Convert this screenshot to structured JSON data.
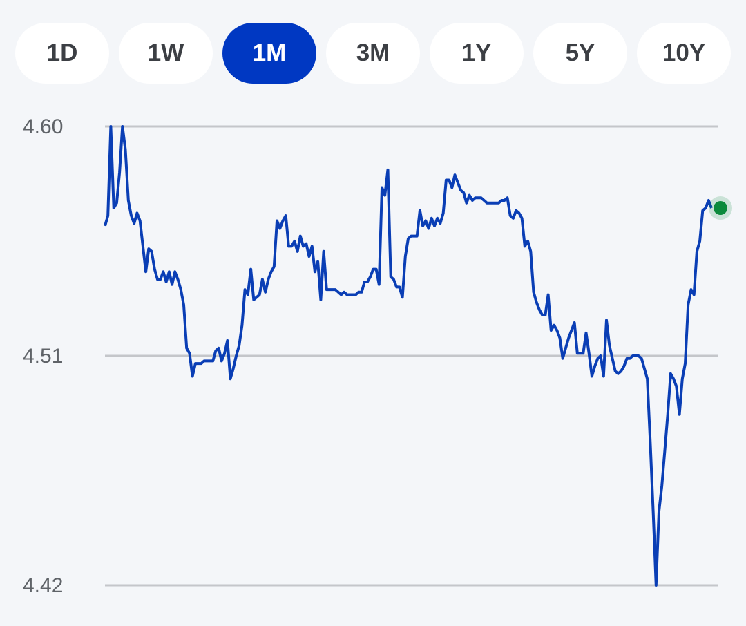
{
  "tabs": {
    "items": [
      "1D",
      "1W",
      "1M",
      "3M",
      "1Y",
      "5Y",
      "10Y"
    ],
    "selected": 2
  },
  "chart_data": {
    "type": "line",
    "color": "#0a3eb5",
    "end_marker_color": "#0b8a3c",
    "ylim": [
      4.42,
      4.6
    ],
    "yticks": [
      {
        "value": 4.6,
        "label": "4.60"
      },
      4.51,
      4.42
    ],
    "grid": true,
    "values": [
      4.561,
      4.565,
      4.6,
      4.568,
      4.57,
      4.582,
      4.6,
      4.591,
      4.571,
      4.565,
      4.562,
      4.566,
      4.563,
      4.553,
      4.543,
      4.552,
      4.551,
      4.544,
      4.54,
      4.54,
      4.543,
      4.539,
      4.543,
      4.538,
      4.543,
      4.54,
      4.536,
      4.53,
      4.513,
      4.511,
      4.502,
      4.507,
      4.507,
      4.507,
      4.508,
      4.508,
      4.508,
      4.508,
      4.512,
      4.513,
      4.508,
      4.511,
      4.516,
      4.501,
      4.505,
      4.51,
      4.514,
      4.522,
      4.536,
      4.534,
      4.544,
      4.532,
      4.533,
      4.534,
      4.54,
      4.535,
      4.54,
      4.543,
      4.545,
      4.563,
      4.56,
      4.563,
      4.565,
      4.553,
      4.553,
      4.555,
      4.551,
      4.557,
      4.553,
      4.554,
      4.549,
      4.553,
      4.543,
      4.547,
      4.532,
      4.551,
      4.536,
      4.536,
      4.536,
      4.536,
      4.535,
      4.534,
      4.535,
      4.534,
      4.534,
      4.534,
      4.534,
      4.535,
      4.535,
      4.539,
      4.539,
      4.541,
      4.544,
      4.544,
      4.538,
      4.576,
      4.573,
      4.583,
      4.541,
      4.54,
      4.537,
      4.537,
      4.533,
      4.549,
      4.556,
      4.557,
      4.557,
      4.557,
      4.567,
      4.561,
      4.563,
      4.56,
      4.564,
      4.561,
      4.564,
      4.562,
      4.566,
      4.579,
      4.579,
      4.576,
      4.581,
      4.578,
      4.575,
      4.574,
      4.57,
      4.573,
      4.571,
      4.572,
      4.572,
      4.572,
      4.571,
      4.57,
      4.57,
      4.57,
      4.57,
      4.57,
      4.571,
      4.571,
      4.572,
      4.565,
      4.564,
      4.567,
      4.566,
      4.564,
      4.553,
      4.555,
      4.551,
      4.535,
      4.531,
      4.528,
      4.526,
      4.526,
      4.534,
      4.52,
      4.522,
      4.52,
      4.517,
      4.509,
      4.513,
      4.517,
      4.52,
      4.523,
      4.511,
      4.511,
      4.511,
      4.519,
      4.511,
      4.502,
      4.506,
      4.509,
      4.51,
      4.502,
      4.524,
      4.514,
      4.509,
      4.504,
      4.503,
      4.504,
      4.506,
      4.509,
      4.509,
      4.51,
      4.51,
      4.51,
      4.509,
      4.505,
      4.501,
      4.476,
      4.449,
      4.42,
      4.449,
      4.459,
      4.473,
      4.487,
      4.503,
      4.501,
      4.498,
      4.487,
      4.501,
      4.507,
      4.53,
      4.536,
      4.534,
      4.551,
      4.555,
      4.567,
      4.568,
      4.571,
      4.568
    ]
  }
}
